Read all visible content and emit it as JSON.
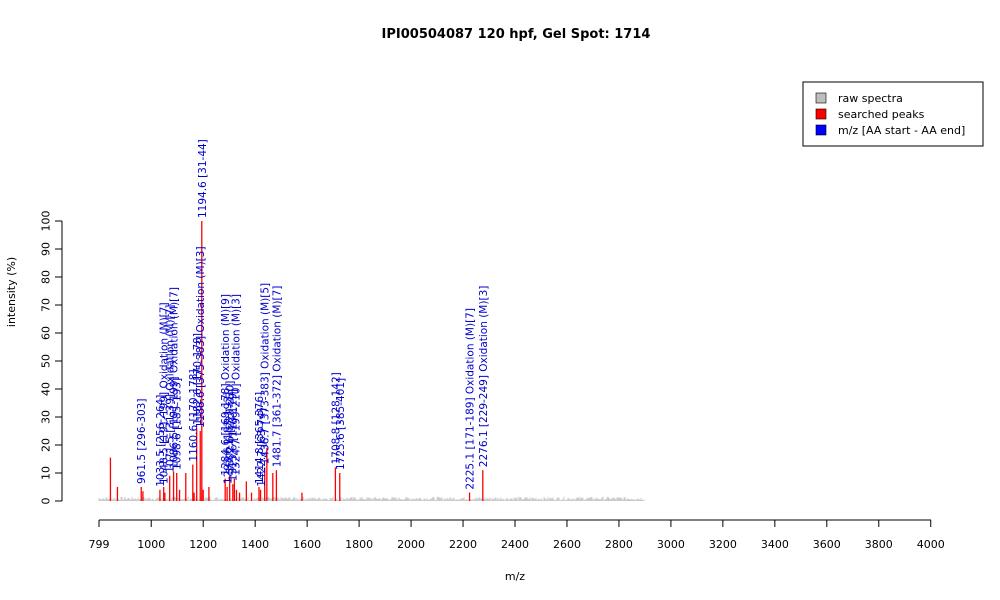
{
  "chart_data": {
    "type": "bar",
    "title": "IPI00504087  120 hpf, Gel Spot: 1714",
    "xlabel": "m/z",
    "ylabel": "intensity (%)",
    "xlim": [
      799,
      4001
    ],
    "ylim": [
      0,
      100
    ],
    "x_ticks": [
      799,
      1000,
      1200,
      1400,
      1600,
      1800,
      2000,
      2200,
      2400,
      2600,
      2800,
      3000,
      3200,
      3400,
      3600,
      3800,
      4000
    ],
    "y_ticks": [
      0,
      10,
      20,
      30,
      40,
      50,
      60,
      70,
      80,
      90,
      100
    ],
    "legend": {
      "position": "top-right",
      "entries": [
        {
          "label": "raw spectra",
          "color": "#bebebe"
        },
        {
          "label": "searched peaks",
          "color": "#ff0000"
        },
        {
          "label": "m/z [AA start - AA end]",
          "color": "#0000ff"
        }
      ]
    },
    "colors": {
      "raw": "#bebebe",
      "searched": "#ff0000",
      "annotation": "#0000cc"
    },
    "raw_noise": {
      "x_start": 799,
      "x_end": 2900,
      "level": 1
    },
    "raw_peaks": [
      {
        "mz": 2760,
        "intensity": 0.8
      },
      {
        "mz": 2820,
        "intensity": 0.6
      },
      {
        "mz": 2840,
        "intensity": 0.5
      }
    ],
    "searched_peaks": [
      {
        "mz": 843,
        "intensity": 15.5
      },
      {
        "mz": 870,
        "intensity": 5
      },
      {
        "mz": 961.5,
        "intensity": 5
      },
      {
        "mz": 968,
        "intensity": 3.5
      },
      {
        "mz": 1033.5,
        "intensity": 4
      },
      {
        "mz": 1048,
        "intensity": 5
      },
      {
        "mz": 1052.5,
        "intensity": 3
      },
      {
        "mz": 1071,
        "intensity": 9
      },
      {
        "mz": 1086,
        "intensity": 10.5
      },
      {
        "mz": 1098,
        "intensity": 10
      },
      {
        "mz": 1109,
        "intensity": 4
      },
      {
        "mz": 1133,
        "intensity": 10
      },
      {
        "mz": 1160,
        "intensity": 13
      },
      {
        "mz": 1165,
        "intensity": 3
      },
      {
        "mz": 1175,
        "intensity": 26
      },
      {
        "mz": 1188.6,
        "intensity": 25
      },
      {
        "mz": 1194.6,
        "intensity": 100
      },
      {
        "mz": 1200,
        "intensity": 4
      },
      {
        "mz": 1222,
        "intensity": 5
      },
      {
        "mz": 1284.6,
        "intensity": 8
      },
      {
        "mz": 1292,
        "intensity": 5
      },
      {
        "mz": 1302,
        "intensity": 9
      },
      {
        "mz": 1314,
        "intensity": 6
      },
      {
        "mz": 1320,
        "intensity": 8
      },
      {
        "mz": 1328,
        "intensity": 4
      },
      {
        "mz": 1340,
        "intensity": 3
      },
      {
        "mz": 1366,
        "intensity": 7
      },
      {
        "mz": 1386,
        "intensity": 3
      },
      {
        "mz": 1414.8,
        "intensity": 5
      },
      {
        "mz": 1420.7,
        "intensity": 4
      },
      {
        "mz": 1436.7,
        "intensity": 12
      },
      {
        "mz": 1445,
        "intensity": 19
      },
      {
        "mz": 1468,
        "intensity": 10
      },
      {
        "mz": 1481.7,
        "intensity": 11
      },
      {
        "mz": 1580,
        "intensity": 3
      },
      {
        "mz": 1708.8,
        "intensity": 12
      },
      {
        "mz": 1725.6,
        "intensity": 10
      },
      {
        "mz": 2225.1,
        "intensity": 3
      },
      {
        "mz": 2276.1,
        "intensity": 11
      }
    ],
    "annotations": [
      {
        "mz": 961.5,
        "text": "961.5 [296-303]"
      },
      {
        "mz": 1033.5,
        "text": "1033.5 [256-264]"
      },
      {
        "mz": 1048,
        "text": "1048.5 [191-199] Oxidation (M)[7]"
      },
      {
        "mz": 1071,
        "text": "1071.5 [31-39] Oxidation (M)[7]"
      },
      {
        "mz": 1086,
        "text": "1086.5 [191-199] Oxidation (M)[7]"
      },
      {
        "mz": 1098,
        "text": "1098.6 [185-193]"
      },
      {
        "mz": 1160,
        "text": "1160.6 [170-178]"
      },
      {
        "mz": 1176,
        "text": "1182.6 [170-178]"
      },
      {
        "mz": 1188.6,
        "text": "1188.6 [375-383] Oxidation (M)[3]"
      },
      {
        "mz": 1194.6,
        "text": "1194.6 [31-44]"
      },
      {
        "mz": 1284.6,
        "text": "1284.6 [169-178] Oxidation (M)[9]"
      },
      {
        "mz": 1293,
        "text": "1293.6 [183-193]"
      },
      {
        "mz": 1302,
        "text": "1302.6 [220-230]"
      },
      {
        "mz": 1313,
        "text": "1313.6 [110-119]"
      },
      {
        "mz": 1324,
        "text": "1324.7 [199-210] Oxidation (M)[3]"
      },
      {
        "mz": 1414.8,
        "text": "1414.8 [365-376]"
      },
      {
        "mz": 1422,
        "text": "1422.7 [63-74]"
      },
      {
        "mz": 1436.7,
        "text": "1436.7 [373-383] Oxidation (M)[5]"
      },
      {
        "mz": 1481.7,
        "text": "1481.7 [361-372] Oxidation (M)[7]"
      },
      {
        "mz": 1708.8,
        "text": "1708.8 [128-142]"
      },
      {
        "mz": 1725.6,
        "text": "1725.6 [385-401]"
      },
      {
        "mz": 2225.1,
        "text": "2225.1 [171-189] Oxidation (M)[7]"
      },
      {
        "mz": 2276.1,
        "text": "2276.1 [229-249] Oxidation (M)[3]"
      }
    ]
  }
}
